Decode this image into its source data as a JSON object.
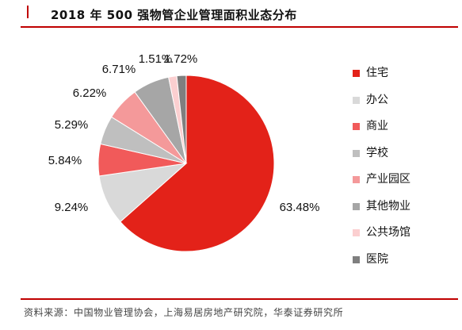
{
  "header": {
    "title": "2018 年 500 强物管企业管理面积业态分布"
  },
  "chart_data": {
    "type": "pie",
    "title": "2018 年 500 强物管企业管理面积业态分布",
    "categories": [
      "住宅",
      "办公",
      "商业",
      "学校",
      "产业园区",
      "其他物业",
      "公共场馆",
      "医院"
    ],
    "values": [
      63.48,
      9.24,
      5.84,
      5.29,
      6.22,
      6.71,
      1.51,
      1.72
    ],
    "labels": [
      "63.48%",
      "9.24%",
      "5.84%",
      "5.29%",
      "6.22%",
      "6.71%",
      "1.51%",
      "1.72%"
    ],
    "unit": "%",
    "colors": [
      "#e32219",
      "#d9d9d9",
      "#f15a5a",
      "#bfbfbf",
      "#f4999a",
      "#a6a6a6",
      "#fbcfd0",
      "#7f7f7f"
    ],
    "legend_position": "right"
  },
  "footer": {
    "source": "资料来源：中国物业管理协会，上海易居房地产研究院，华泰证券研究所"
  }
}
